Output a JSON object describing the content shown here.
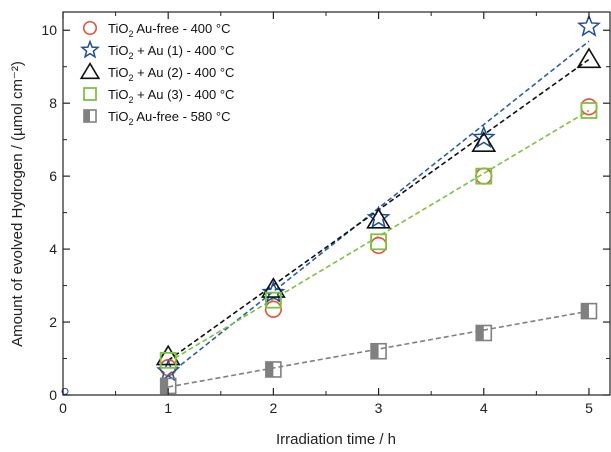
{
  "chart_data": {
    "type": "scatter",
    "xlabel": "Irradiation time / h",
    "ylabel": "Amount of evolved Hydrogen / (µmol cm⁻²)",
    "xlim": [
      0,
      5.2
    ],
    "ylim": [
      0,
      10.5
    ],
    "x_ticks": [
      0,
      1,
      2,
      3,
      4,
      5
    ],
    "y_ticks": [
      0,
      2,
      4,
      6,
      8,
      10
    ],
    "x_tick_labels": [
      "0",
      "1",
      "2",
      "3",
      "4",
      "5"
    ],
    "y_tick_labels": [
      "0",
      "2",
      "4",
      "6",
      "8",
      "10"
    ],
    "legend_position": "top-left",
    "grid": false,
    "origin_point": {
      "x": 0,
      "y": 0.1
    },
    "series": [
      {
        "base": "TiO",
        "sub": "2",
        "rest": " Au-free  -  400 °C",
        "marker": "circle",
        "color": "#e8503a",
        "x": [
          1,
          2,
          3,
          4,
          5
        ],
        "y": [
          0.75,
          2.35,
          4.1,
          6.0,
          7.9
        ],
        "fit": null
      },
      {
        "base": "TiO",
        "sub": "2",
        "rest": " + Au  (1)  - 400 °C",
        "marker": "star",
        "color": "#1f4e9c",
        "x": [
          1,
          2,
          3,
          4,
          5
        ],
        "y": [
          0.65,
          2.8,
          4.85,
          7.05,
          10.1
        ],
        "fit": {
          "x": [
            1,
            5
          ],
          "y": [
            0.55,
            9.7
          ],
          "color": "#2b5ea8"
        }
      },
      {
        "base": "TiO",
        "sub": "2",
        "rest": " + Au  (2)  - 400 °C",
        "marker": "triangle",
        "color": "#111111",
        "x": [
          1,
          2,
          3,
          4,
          5
        ],
        "y": [
          1.05,
          2.9,
          4.8,
          6.9,
          9.2
        ],
        "fit": {
          "x": [
            1,
            5
          ],
          "y": [
            0.95,
            9.2
          ],
          "color": "#111111"
        }
      },
      {
        "base": "TiO",
        "sub": "2",
        "rest": " + Au  (3)  - 400 °C",
        "marker": "square",
        "color": "#7cc242",
        "x": [
          1,
          2,
          3,
          4,
          5
        ],
        "y": [
          0.95,
          2.6,
          4.2,
          6.0,
          7.8
        ],
        "fit": {
          "x": [
            1,
            5
          ],
          "y": [
            0.9,
            7.8
          ],
          "color": "#7cc242"
        }
      },
      {
        "base": "TiO",
        "sub": "2",
        "rest": " Au-free - 580 °C",
        "marker": "half-square",
        "color": "#808080",
        "x": [
          1,
          2,
          3,
          4,
          5
        ],
        "y": [
          0.25,
          0.7,
          1.2,
          1.7,
          2.3
        ],
        "fit": {
          "x": [
            1,
            5
          ],
          "y": [
            0.22,
            2.3
          ],
          "color": "#808080"
        }
      }
    ]
  }
}
